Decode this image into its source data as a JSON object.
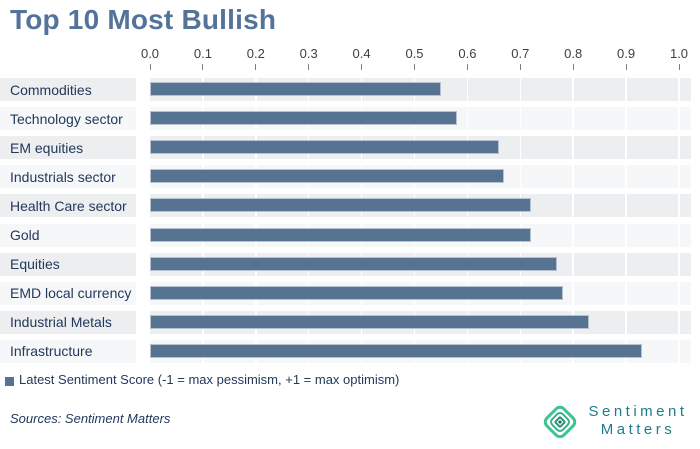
{
  "title": "Top 10 Most Bullish",
  "legend": {
    "label": "Latest Sentiment Score (-1 = max pessimism, +1 = max optimism)"
  },
  "footer": {
    "sources": "Sources: Sentiment Matters",
    "logo_line1": "Sentiment",
    "logo_line2": "Matters"
  },
  "colors": {
    "title": "#54739B",
    "bar_fill": "#567392",
    "bar_border": "#B6C2CF",
    "stripe_odd": "#ECEEF0",
    "stripe_even": "#F6F7F8",
    "category_text": "#22395C",
    "tick_text": "#3F3F3F",
    "logo_green": "#3CC491",
    "logo_text": "#1F7B8D"
  },
  "chart_data": {
    "type": "bar",
    "orientation": "horizontal",
    "title": "Top 10 Most Bullish",
    "categories": [
      "Commodities",
      "Technology sector",
      "EM equities",
      "Industrials sector",
      "Health Care sector",
      "Gold",
      "Equities",
      "EMD local currency",
      "Industrial Metals",
      "Infrastructure"
    ],
    "values": [
      0.55,
      0.58,
      0.66,
      0.67,
      0.72,
      0.72,
      0.77,
      0.78,
      0.83,
      0.93
    ],
    "series": [
      {
        "name": "Latest Sentiment Score (-1 = max pessimism, +1 = max optimism)",
        "values": [
          0.55,
          0.58,
          0.66,
          0.67,
          0.72,
          0.72,
          0.77,
          0.78,
          0.83,
          0.93
        ]
      }
    ],
    "xlim": [
      0,
      1
    ],
    "xtick_labels": [
      "0.0",
      "0.1",
      "0.2",
      "0.3",
      "0.4",
      "0.5",
      "0.6",
      "0.7",
      "0.8",
      "0.9",
      "1.0"
    ],
    "axis_position": "top",
    "grid": true,
    "legend_position": "bottom-left",
    "sort": "ascending top to bottom"
  }
}
